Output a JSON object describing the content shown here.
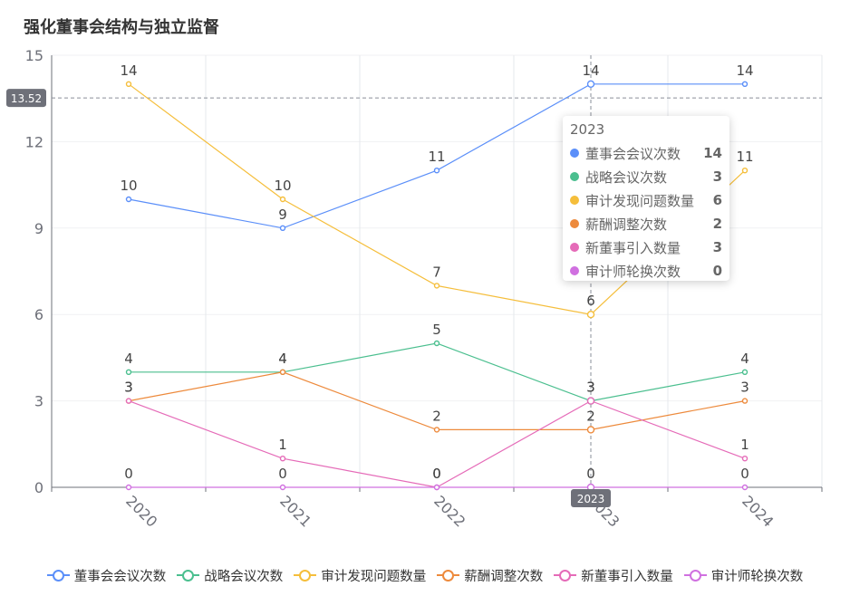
{
  "chart_data": {
    "type": "line",
    "title": "强化董事会结构与独立监督",
    "categories": [
      "2020",
      "2021",
      "2022",
      "2023",
      "2024"
    ],
    "ylim": [
      0,
      15
    ],
    "yticks": [
      0,
      3,
      6,
      9,
      12,
      15
    ],
    "series": [
      {
        "name": "董事会会议次数",
        "color": "#5b8ff9",
        "values": [
          10,
          9,
          11,
          14,
          14
        ]
      },
      {
        "name": "战略会议次数",
        "color": "#4bbf8f",
        "values": [
          4,
          4,
          5,
          3,
          4
        ]
      },
      {
        "name": "审计发现问题数量",
        "color": "#f5be3b",
        "values": [
          14,
          10,
          7,
          6,
          11
        ]
      },
      {
        "name": "薪酬调整次数",
        "color": "#ed8a3c",
        "values": [
          3,
          4,
          2,
          2,
          3
        ]
      },
      {
        "name": "新董事引入数量",
        "color": "#e56bb8",
        "values": [
          3,
          1,
          0,
          3,
          1
        ]
      },
      {
        "name": "审计师轮换次数",
        "color": "#d070e0",
        "values": [
          0,
          0,
          0,
          0,
          0
        ]
      }
    ],
    "pointer": {
      "y_label": "13.52",
      "x_label": "2023"
    }
  },
  "tooltip": {
    "title": "2023",
    "rows": [
      {
        "name": "董事会会议次数",
        "value": "14",
        "color": "#5b8ff9"
      },
      {
        "name": "战略会议次数",
        "value": "3",
        "color": "#4bbf8f"
      },
      {
        "name": "审计发现问题数量",
        "value": "6",
        "color": "#f5be3b"
      },
      {
        "name": "薪酬调整次数",
        "value": "2",
        "color": "#ed8a3c"
      },
      {
        "name": "新董事引入数量",
        "value": "3",
        "color": "#e56bb8"
      },
      {
        "name": "审计师轮换次数",
        "value": "0",
        "color": "#d070e0"
      }
    ]
  }
}
